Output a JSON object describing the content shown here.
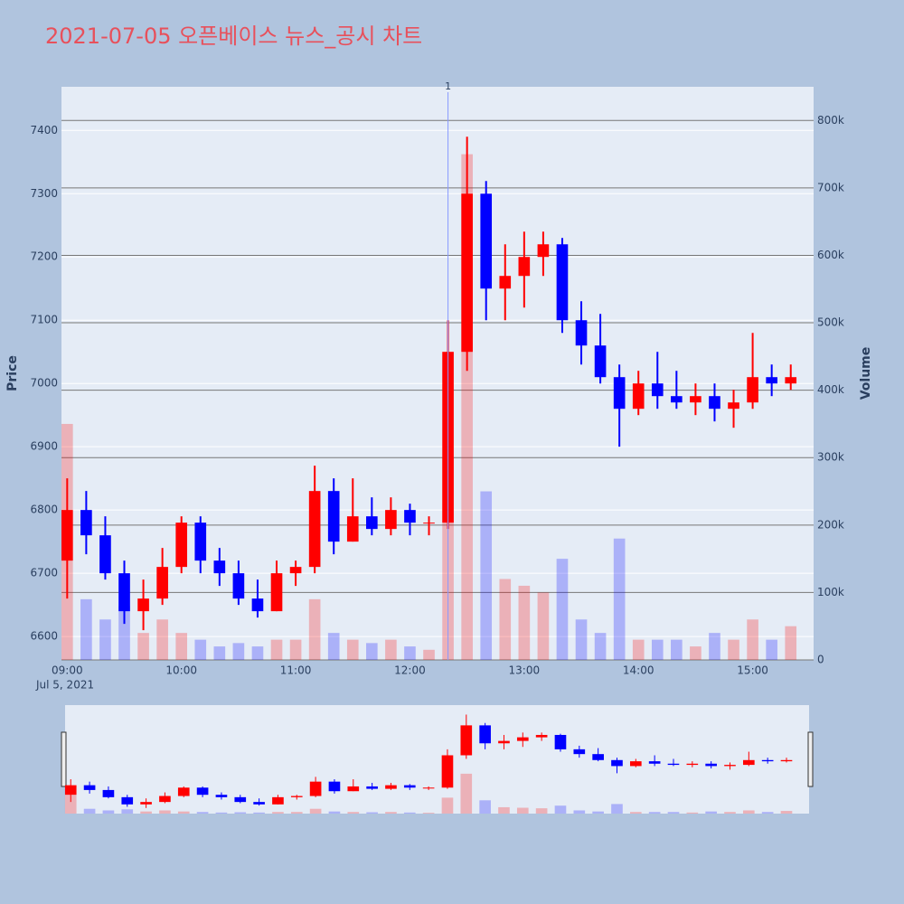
{
  "chart_data": {
    "type": "candlestick",
    "title": "2021-07-05 오픈베이스 뉴스_공시 차트",
    "y_label": "Price",
    "y2_label": "Volume",
    "x_date_label": "Jul 5, 2021",
    "x": [
      "09:00",
      "09:10",
      "09:20",
      "09:30",
      "09:40",
      "09:50",
      "10:00",
      "10:10",
      "10:20",
      "10:30",
      "10:40",
      "10:50",
      "11:00",
      "11:10",
      "11:20",
      "11:30",
      "11:40",
      "11:50",
      "12:00",
      "12:10",
      "12:20",
      "12:30",
      "12:40",
      "12:50",
      "13:00",
      "13:10",
      "13:20",
      "13:30",
      "13:40",
      "13:50",
      "14:00",
      "14:10",
      "14:20",
      "14:30",
      "14:40",
      "14:50",
      "15:00",
      "15:10",
      "15:20"
    ],
    "open": [
      6720,
      6800,
      6760,
      6700,
      6640,
      6660,
      6710,
      6780,
      6720,
      6700,
      6660,
      6640,
      6700,
      6710,
      6830,
      6750,
      6790,
      6770,
      6800,
      6780,
      6780,
      7050,
      7300,
      7150,
      7170,
      7200,
      7220,
      7100,
      7060,
      7010,
      6960,
      7000,
      6980,
      6970,
      6980,
      6960,
      6970,
      7010,
      7000
    ],
    "high": [
      6850,
      6830,
      6790,
      6720,
      6690,
      6740,
      6790,
      6790,
      6740,
      6720,
      6690,
      6720,
      6720,
      6870,
      6850,
      6850,
      6820,
      6820,
      6810,
      6790,
      7100,
      7390,
      7320,
      7220,
      7240,
      7240,
      7230,
      7130,
      7110,
      7030,
      7020,
      7050,
      7020,
      7000,
      7000,
      6990,
      7080,
      7030,
      7030
    ],
    "low": [
      6660,
      6730,
      6690,
      6620,
      6610,
      6650,
      6700,
      6700,
      6680,
      6650,
      6630,
      6640,
      6680,
      6700,
      6730,
      6750,
      6760,
      6760,
      6760,
      6760,
      6770,
      7020,
      7100,
      7100,
      7120,
      7170,
      7080,
      7030,
      7000,
      6900,
      6950,
      6960,
      6960,
      6950,
      6940,
      6930,
      6960,
      6980,
      6990
    ],
    "close": [
      6800,
      6760,
      6700,
      6640,
      6660,
      6710,
      6780,
      6720,
      6700,
      6660,
      6640,
      6700,
      6710,
      6830,
      6750,
      6790,
      6770,
      6800,
      6780,
      6780,
      7050,
      7300,
      7150,
      7170,
      7200,
      7220,
      7100,
      7060,
      7010,
      6960,
      7000,
      6980,
      6970,
      6980,
      6960,
      6970,
      7010,
      7000,
      7010
    ],
    "volume": [
      350000,
      90000,
      60000,
      80000,
      40000,
      60000,
      40000,
      30000,
      20000,
      25000,
      20000,
      30000,
      30000,
      90000,
      40000,
      30000,
      25000,
      30000,
      20000,
      15000,
      300000,
      750000,
      250000,
      120000,
      110000,
      100000,
      150000,
      60000,
      40000,
      180000,
      30000,
      30000,
      30000,
      20000,
      40000,
      30000,
      60000,
      30000,
      50000
    ],
    "increasing_color": "#ff0000",
    "decreasing_color": "#0000ff",
    "xlim": [
      "08:57",
      "15:32"
    ],
    "xticks": [
      "09:00",
      "10:00",
      "11:00",
      "12:00",
      "13:00",
      "14:00",
      "15:00"
    ],
    "ylim": [
      6563,
      7469
    ],
    "yticks": [
      6600,
      6700,
      6800,
      6900,
      7000,
      7100,
      7200,
      7300,
      7400
    ],
    "y2lim": [
      0,
      850000
    ],
    "y2ticks": [
      0,
      {
        "value": 100000,
        "label": "100k"
      },
      {
        "value": 200000,
        "label": "200k"
      },
      {
        "value": 300000,
        "label": "300k"
      },
      {
        "value": 400000,
        "label": "400k"
      },
      {
        "value": 500000,
        "label": "500k"
      },
      {
        "value": 600000,
        "label": "600k"
      },
      {
        "value": 700000,
        "label": "700k"
      },
      {
        "value": 800000,
        "label": "800k"
      }
    ],
    "annotations": [
      {
        "text": "1",
        "x": "12:20"
      }
    ],
    "grid": true,
    "rangeslider": true
  }
}
